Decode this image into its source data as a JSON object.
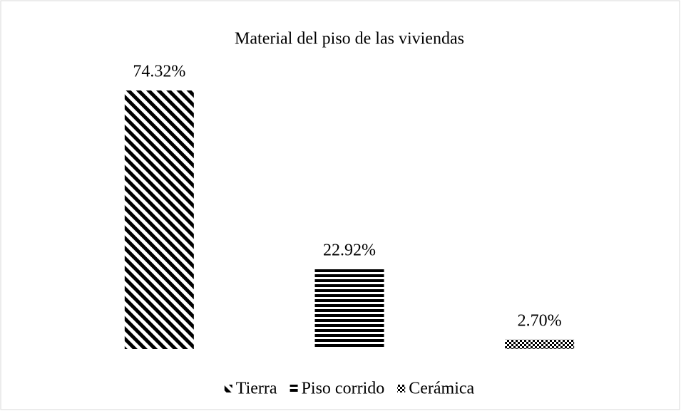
{
  "chart_data": {
    "type": "bar",
    "title": "Material del piso de las viviendas",
    "categories": [
      null
    ],
    "legend": "bottom",
    "series": [
      {
        "name": "Tierra",
        "color": "#000000",
        "pattern": "diagonal",
        "values": [
          74.32
        ],
        "value_labels": [
          "74.32%"
        ]
      },
      {
        "name": "Piso corrido",
        "color": "#000000",
        "pattern": "horizontal",
        "values": [
          22.92
        ],
        "value_labels": [
          "22.92%"
        ]
      },
      {
        "name": "Cerámica",
        "color": "#000000",
        "pattern": "checker",
        "values": [
          2.7
        ],
        "value_labels": [
          "2.70%"
        ]
      }
    ]
  }
}
